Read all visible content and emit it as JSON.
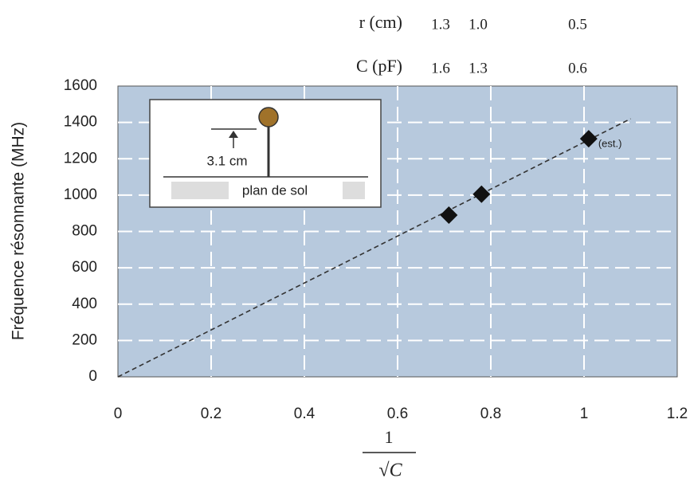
{
  "chart_data": {
    "type": "scatter",
    "y_label": "Fréquence résonnante (MHz)",
    "x_label": {
      "numerator": "1",
      "denominator": "√C"
    },
    "top_table": {
      "rows": [
        {
          "label": "r (cm)",
          "values": [
            "1.3",
            "1.0",
            "0.5"
          ]
        },
        {
          "label": "C (pF)",
          "values": [
            "1.6",
            "1.3",
            "0.6"
          ]
        }
      ]
    },
    "inset": {
      "dimension": "3.1 cm",
      "ground": "plan de sol"
    },
    "x": [
      0.71,
      0.78,
      1.01
    ],
    "series": [
      {
        "color": "#111111",
        "values": [
          890,
          1005,
          1310
        ]
      }
    ],
    "point_annotations": [
      null,
      null,
      "(est.)"
    ],
    "fit_line": {
      "x": [
        0,
        1.1
      ],
      "y": [
        0,
        1420
      ],
      "color": "#333333"
    },
    "xlim": [
      0,
      1.2
    ],
    "xticks": [
      0,
      0.2,
      0.4,
      0.6,
      0.8,
      1,
      1.2
    ],
    "ylim": [
      0,
      1600
    ],
    "yticks": [
      0,
      200,
      400,
      600,
      800,
      1000,
      1200,
      1400,
      1600
    ],
    "grid": true,
    "background": "#b7c9dd"
  }
}
